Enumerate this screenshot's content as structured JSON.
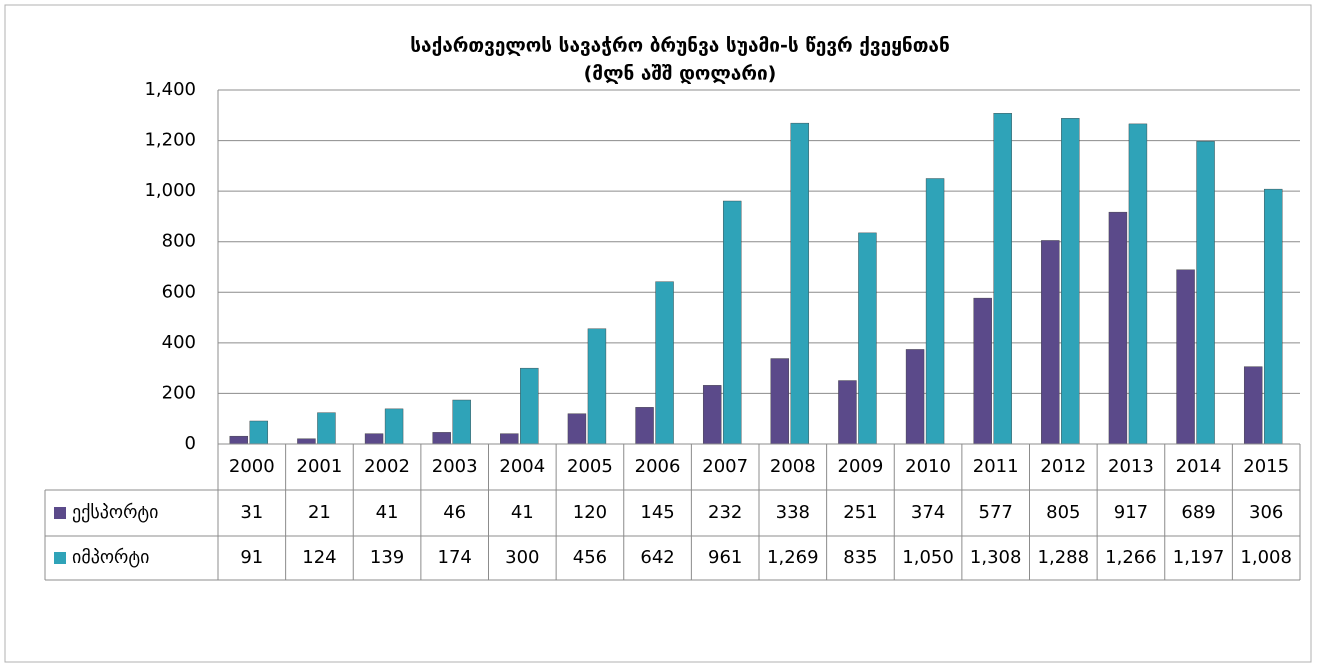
{
  "chart_data": {
    "type": "bar",
    "title": "საქართველოს სავაჭრო ბრუნვა სუამი-ს წევრ ქვეყნთან",
    "subtitle": "(მლნ აშშ დოლარი)",
    "categories": [
      "2000",
      "2001",
      "2002",
      "2003",
      "2004",
      "2005",
      "2006",
      "2007",
      "2008",
      "2009",
      "2010",
      "2011",
      "2012",
      "2013",
      "2014",
      "2015"
    ],
    "series": [
      {
        "name": "ექსპორტი",
        "color": "#5b4a8a",
        "values": [
          31,
          21,
          41,
          46,
          41,
          120,
          145,
          232,
          338,
          251,
          374,
          577,
          805,
          917,
          689,
          306
        ]
      },
      {
        "name": "იმპორტი",
        "color": "#2fa3b8",
        "values": [
          91,
          124,
          139,
          174,
          300,
          456,
          642,
          961,
          1269,
          835,
          1050,
          1308,
          1288,
          1266,
          1197,
          1008
        ],
        "value_labels": [
          "91",
          "124",
          "139",
          "174",
          "300",
          "456",
          "642",
          "961",
          "1,269",
          "835",
          "1,050",
          "1,308",
          "1,288",
          "1,266",
          "1,197",
          "1,008"
        ]
      }
    ],
    "ylim": [
      0,
      1400
    ],
    "yticks": [
      0,
      200,
      400,
      600,
      800,
      {
        "value": 1000,
        "label": "1,000"
      },
      {
        "value": 1200,
        "label": "1,200"
      },
      {
        "value": 1400,
        "label": "1,400"
      }
    ],
    "grid": true
  }
}
